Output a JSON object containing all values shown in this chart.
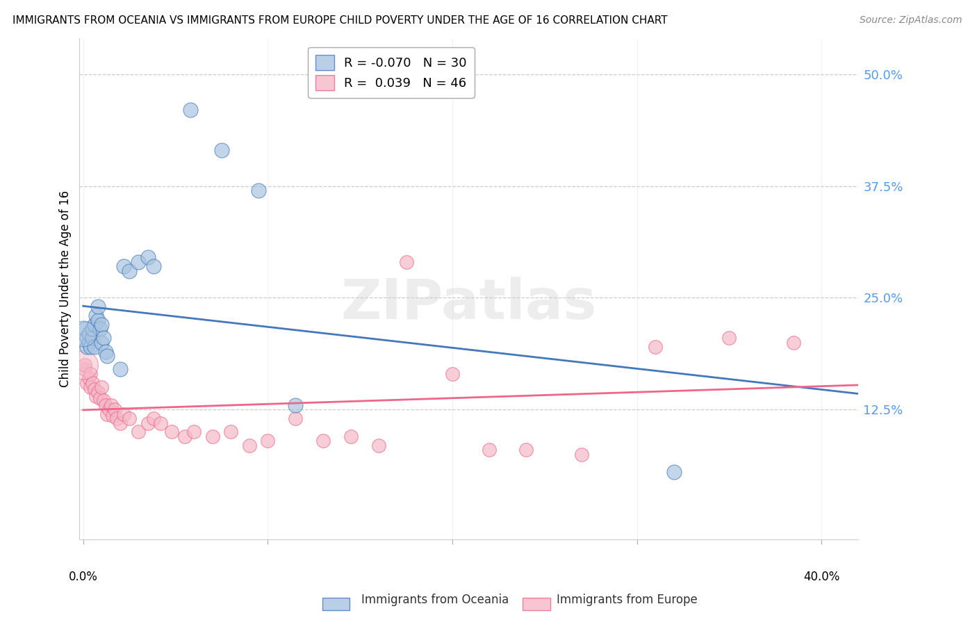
{
  "title": "IMMIGRANTS FROM OCEANIA VS IMMIGRANTS FROM EUROPE CHILD POVERTY UNDER THE AGE OF 16 CORRELATION CHART",
  "source": "Source: ZipAtlas.com",
  "ylabel": "Child Poverty Under the Age of 16",
  "ytick_values": [
    0.125,
    0.25,
    0.375,
    0.5
  ],
  "ylim": [
    -0.02,
    0.54
  ],
  "xlim": [
    -0.002,
    0.42
  ],
  "oceania_color": "#a8c4e0",
  "europe_color": "#f4b8c8",
  "oceania_line_color": "#4477bb",
  "europe_line_color": "#ee6688",
  "watermark": "ZIPatlas",
  "oceania_R": -0.07,
  "oceania_N": 30,
  "europe_R": 0.039,
  "europe_N": 46,
  "oceania_x": [
    0.001,
    0.002,
    0.002,
    0.003,
    0.003,
    0.004,
    0.005,
    0.005,
    0.006,
    0.006,
    0.007,
    0.008,
    0.008,
    0.009,
    0.01,
    0.01,
    0.011,
    0.012,
    0.013,
    0.02,
    0.022,
    0.025,
    0.03,
    0.035,
    0.038,
    0.058,
    0.075,
    0.095,
    0.115,
    0.32
  ],
  "oceania_y": [
    0.215,
    0.195,
    0.205,
    0.2,
    0.21,
    0.195,
    0.205,
    0.215,
    0.195,
    0.22,
    0.23,
    0.225,
    0.24,
    0.215,
    0.2,
    0.22,
    0.205,
    0.19,
    0.185,
    0.17,
    0.285,
    0.28,
    0.29,
    0.295,
    0.285,
    0.46,
    0.415,
    0.37,
    0.13,
    0.055
  ],
  "europe_x": [
    0.001,
    0.001,
    0.002,
    0.003,
    0.004,
    0.004,
    0.005,
    0.006,
    0.007,
    0.008,
    0.009,
    0.01,
    0.011,
    0.012,
    0.013,
    0.014,
    0.015,
    0.016,
    0.017,
    0.018,
    0.02,
    0.022,
    0.025,
    0.03,
    0.035,
    0.038,
    0.042,
    0.048,
    0.055,
    0.06,
    0.07,
    0.08,
    0.09,
    0.1,
    0.115,
    0.13,
    0.145,
    0.16,
    0.175,
    0.2,
    0.22,
    0.24,
    0.27,
    0.31,
    0.35,
    0.385
  ],
  "europe_y": [
    0.17,
    0.175,
    0.155,
    0.16,
    0.15,
    0.165,
    0.155,
    0.148,
    0.14,
    0.145,
    0.138,
    0.15,
    0.135,
    0.13,
    0.12,
    0.125,
    0.13,
    0.118,
    0.125,
    0.115,
    0.11,
    0.12,
    0.115,
    0.1,
    0.11,
    0.115,
    0.11,
    0.1,
    0.095,
    0.1,
    0.095,
    0.1,
    0.085,
    0.09,
    0.115,
    0.09,
    0.095,
    0.085,
    0.29,
    0.165,
    0.08,
    0.08,
    0.075,
    0.195,
    0.205,
    0.2
  ]
}
